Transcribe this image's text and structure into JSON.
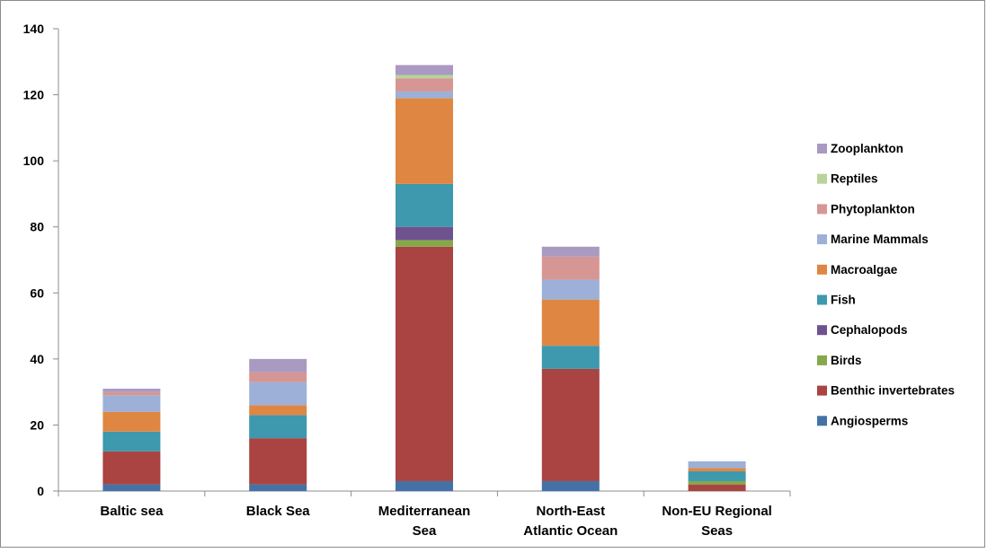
{
  "chart_data": {
    "type": "bar",
    "stacked": true,
    "categories": [
      [
        "Baltic sea"
      ],
      [
        "Black Sea"
      ],
      [
        "Mediterranean",
        "Sea"
      ],
      [
        "North-East",
        "Atlantic Ocean"
      ],
      [
        "Non-EU Regional",
        "Seas"
      ]
    ],
    "series": [
      {
        "name": "Angiosperms",
        "color": "#4472A8",
        "values": [
          2,
          2,
          3,
          3,
          0
        ]
      },
      {
        "name": "Benthic invertebrates",
        "color": "#A94442",
        "values": [
          10,
          14,
          71,
          34,
          2
        ]
      },
      {
        "name": "Birds",
        "color": "#86A84A",
        "values": [
          0,
          0,
          2,
          0,
          1
        ]
      },
      {
        "name": "Cephalopods",
        "color": "#6E5290",
        "values": [
          0,
          0,
          4,
          0,
          0
        ]
      },
      {
        "name": "Fish",
        "color": "#3E98AE",
        "values": [
          6,
          7,
          13,
          7,
          3
        ]
      },
      {
        "name": "Macroalgae",
        "color": "#DF8642",
        "values": [
          6,
          3,
          26,
          14,
          1
        ]
      },
      {
        "name": "Marine Mammals",
        "color": "#9CB0D8",
        "values": [
          5,
          7,
          2,
          6,
          2
        ]
      },
      {
        "name": "Phytoplankton",
        "color": "#D69694",
        "values": [
          1,
          3,
          4,
          7,
          0
        ]
      },
      {
        "name": "Reptiles",
        "color": "#B9D39A",
        "values": [
          0,
          0,
          1,
          0,
          0
        ]
      },
      {
        "name": "Zooplankton",
        "color": "#AA9AC1",
        "values": [
          1,
          4,
          3,
          3,
          0
        ]
      }
    ],
    "ylim": [
      0,
      140
    ],
    "yticks": [
      0,
      20,
      40,
      60,
      80,
      100,
      120,
      140
    ],
    "grid": false,
    "legend": "right"
  }
}
